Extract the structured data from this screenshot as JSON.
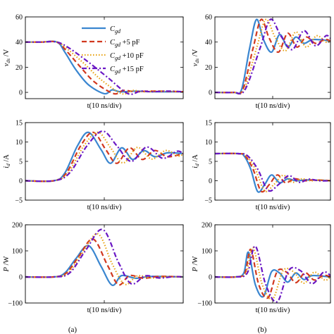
{
  "colors": {
    "blue": "#3a86d0",
    "red": "#d1381f",
    "orange": "#e8a417",
    "purple": "#6a17c4"
  },
  "legend": [
    {
      "sym": "C",
      "sub": "gd",
      "suffix": "",
      "color": "#3a86d0",
      "dash": "solid"
    },
    {
      "sym": "C",
      "sub": "gd",
      "suffix": " +5 pF",
      "color": "#d1381f",
      "dash": "dash"
    },
    {
      "sym": "C",
      "sub": "gd",
      "suffix": " +10 pF",
      "color": "#e8a417",
      "dash": "dot"
    },
    {
      "sym": "C",
      "sub": "gd",
      "suffix": " +15 pF",
      "color": "#6a17c4",
      "dash": "dashdot"
    }
  ],
  "captions": {
    "a": "(a)",
    "b": "(b)"
  },
  "chart_data": [
    {
      "id": "a1",
      "type": "line",
      "column": "a",
      "ylabel_main": "v",
      "ylabel_sub": "ds",
      "ylabel_unit": " /V",
      "xlabel": "t(10 ns/div)",
      "ylim": [
        -5,
        60
      ],
      "yticks": [
        0,
        20,
        40,
        60
      ],
      "ytick_labels": [
        "0",
        "20",
        "40",
        "60"
      ],
      "xlim": [
        0,
        10
      ],
      "grid": false,
      "series": [
        {
          "name": "Cgd",
          "x": [
            0,
            1,
            2,
            2.5,
            3.2,
            4,
            5,
            5.5,
            6,
            7,
            8,
            10
          ],
          "y": [
            40,
            40,
            40,
            32,
            18,
            6,
            -1,
            2,
            0.5,
            1,
            0.5,
            0.5
          ]
        },
        {
          "name": "Cgd +5 pF",
          "x": [
            0,
            1,
            2,
            2.6,
            3.5,
            4.4,
            5.6,
            6.2,
            7,
            8,
            10
          ],
          "y": [
            40,
            40,
            40,
            33,
            20,
            8,
            -1,
            1.5,
            0.5,
            1,
            0.5
          ]
        },
        {
          "name": "Cgd +10 pF",
          "x": [
            0,
            1,
            2,
            2.7,
            3.8,
            4.8,
            6.1,
            6.8,
            7.5,
            8.5,
            10
          ],
          "y": [
            40,
            40,
            40,
            34,
            22,
            10,
            -1,
            1.5,
            0.5,
            1,
            0.5
          ]
        },
        {
          "name": "Cgd +15 pF",
          "x": [
            0,
            1,
            2,
            2.8,
            4,
            5.2,
            6.5,
            7.3,
            8,
            9,
            10
          ],
          "y": [
            40,
            40,
            40,
            35,
            24,
            12,
            -1,
            1,
            0.5,
            1,
            0.5
          ]
        }
      ]
    },
    {
      "id": "b1",
      "type": "line",
      "column": "b",
      "ylabel_main": "v",
      "ylabel_sub": "ds",
      "ylabel_unit": " /V",
      "xlabel": "t(10 ns/div)",
      "ylim": [
        -5,
        60
      ],
      "yticks": [
        0,
        20,
        40,
        60
      ],
      "ytick_labels": [
        "0",
        "20",
        "40",
        "60"
      ],
      "xlim": [
        0,
        10
      ],
      "grid": false,
      "series": [
        {
          "name": "Cgd",
          "x": [
            0,
            1.6,
            2.3,
            3,
            3.6,
            4.2,
            4.9,
            5.6,
            6.3,
            7,
            7.7,
            8.5,
            10
          ],
          "y": [
            0,
            0,
            2,
            35,
            58,
            42,
            32,
            46,
            36,
            44,
            39,
            42,
            41
          ]
        },
        {
          "name": "Cgd +5 pF",
          "x": [
            0,
            1.6,
            2.4,
            3.3,
            4,
            4.7,
            5.5,
            6.3,
            7.1,
            7.9,
            8.7,
            9.5,
            10
          ],
          "y": [
            0,
            0,
            2,
            35,
            58,
            43,
            32,
            47,
            36,
            44,
            39,
            42,
            41
          ]
        },
        {
          "name": "Cgd +10 pF",
          "x": [
            0,
            1.6,
            2.5,
            3.6,
            4.4,
            5.2,
            6.1,
            7,
            7.9,
            8.8,
            9.6,
            10
          ],
          "y": [
            0,
            0,
            2,
            35,
            58,
            44,
            33,
            48,
            36,
            45,
            40,
            41
          ]
        },
        {
          "name": "Cgd +15 pF",
          "x": [
            0,
            1.6,
            2.6,
            3.9,
            4.8,
            5.7,
            6.7,
            7.7,
            8.7,
            9.6,
            10
          ],
          "y": [
            0,
            0,
            2,
            35,
            58,
            45,
            34,
            49,
            37,
            45,
            43
          ]
        }
      ]
    },
    {
      "id": "a2",
      "type": "line",
      "column": "a",
      "ylabel_main": "i",
      "ylabel_sub": "d",
      "ylabel_unit": " /A",
      "xlabel": "t(10 ns/div)",
      "ylim": [
        -5,
        15
      ],
      "yticks": [
        -5,
        0,
        5,
        10,
        15
      ],
      "ytick_labels": [
        "−5",
        "0",
        "5",
        "10",
        "15"
      ],
      "xlim": [
        0,
        10
      ],
      "grid": false,
      "series": [
        {
          "name": "Cgd",
          "x": [
            0,
            1.8,
            2.5,
            3.3,
            4,
            4.8,
            5.4,
            6.1,
            6.8,
            7.5,
            8.2,
            9,
            10
          ],
          "y": [
            0,
            0,
            2,
            9,
            12.5,
            8,
            4.5,
            8.5,
            5.5,
            7.8,
            6.2,
            7.2,
            7
          ]
        },
        {
          "name": "Cgd +5 pF",
          "x": [
            0,
            1.8,
            2.6,
            3.5,
            4.3,
            5.1,
            5.8,
            6.6,
            7.4,
            8.2,
            9,
            10
          ],
          "y": [
            0,
            0,
            2,
            9,
            12.5,
            8,
            4.5,
            8.5,
            5.5,
            7.8,
            6.2,
            7
          ]
        },
        {
          "name": "Cgd +10 pF",
          "x": [
            0,
            1.8,
            2.7,
            3.7,
            4.6,
            5.4,
            6.2,
            7.1,
            8,
            8.9,
            9.7,
            10
          ],
          "y": [
            0,
            0,
            2,
            9,
            12.5,
            8.5,
            4.6,
            8.6,
            5.6,
            7.8,
            6.4,
            7
          ]
        },
        {
          "name": "Cgd +15 pF",
          "x": [
            0,
            1.8,
            2.8,
            3.9,
            4.9,
            5.8,
            6.7,
            7.7,
            8.7,
            9.6,
            10
          ],
          "y": [
            0,
            0,
            2,
            9,
            12.8,
            9,
            5,
            8.7,
            5.8,
            7.6,
            7
          ]
        }
      ]
    },
    {
      "id": "b2",
      "type": "line",
      "column": "b",
      "ylabel_main": "i",
      "ylabel_sub": "d",
      "ylabel_unit": " /A",
      "xlabel": "t(10 ns/div)",
      "ylim": [
        -5,
        15
      ],
      "yticks": [
        -5,
        0,
        5,
        10,
        15
      ],
      "ytick_labels": [
        "−5",
        "0",
        "5",
        "10",
        "15"
      ],
      "xlim": [
        0,
        10
      ],
      "grid": false,
      "series": [
        {
          "name": "Cgd",
          "x": [
            0,
            2,
            2.5,
            3.1,
            3.7,
            4.3,
            4.9,
            5.6,
            6.3,
            7,
            8,
            10
          ],
          "y": [
            7,
            7,
            6.5,
            3,
            -2.8,
            -1,
            1.5,
            -0.5,
            0.5,
            0,
            0.2,
            0
          ]
        },
        {
          "name": "Cgd +5 pF",
          "x": [
            0,
            2,
            2.6,
            3.3,
            4,
            4.7,
            5.4,
            6.1,
            6.9,
            7.7,
            8.5,
            10
          ],
          "y": [
            7,
            7,
            6.5,
            3,
            -2.7,
            -1,
            1.5,
            -0.5,
            0.5,
            0,
            0.2,
            0
          ]
        },
        {
          "name": "Cgd +10 pF",
          "x": [
            0,
            2,
            2.7,
            3.5,
            4.3,
            5.1,
            5.9,
            6.7,
            7.5,
            8.3,
            9.1,
            10
          ],
          "y": [
            7,
            7,
            6.5,
            3,
            -2.6,
            -1,
            1.4,
            -0.4,
            0.5,
            0,
            0.2,
            0
          ]
        },
        {
          "name": "Cgd +15 pF",
          "x": [
            0,
            2,
            2.8,
            3.7,
            4.6,
            5.5,
            6.4,
            7.3,
            8.1,
            9,
            10
          ],
          "y": [
            7,
            7,
            6.5,
            3,
            -2.5,
            -1,
            1.3,
            -0.4,
            0.4,
            0,
            0
          ]
        }
      ]
    },
    {
      "id": "a3",
      "type": "line",
      "column": "a",
      "ylabel_main": "P",
      "ylabel_sub": "",
      "ylabel_unit": " /W",
      "xlabel": "t(10 ns/div)",
      "ylim": [
        -100,
        200
      ],
      "yticks": [
        -100,
        0,
        100,
        200
      ],
      "ytick_labels": [
        "−100",
        "0",
        "100",
        "200"
      ],
      "xlim": [
        0,
        10
      ],
      "grid": false,
      "series": [
        {
          "name": "Cgd",
          "x": [
            0,
            1.8,
            2.5,
            3.2,
            4,
            4.8,
            5.5,
            6.1,
            7,
            8,
            10
          ],
          "y": [
            0,
            0,
            15,
            70,
            120,
            40,
            -32,
            5,
            -5,
            2,
            0
          ]
        },
        {
          "name": "Cgd +5 pF",
          "x": [
            0,
            1.8,
            2.6,
            3.4,
            4.3,
            5.2,
            5.9,
            6.6,
            7.5,
            8.5,
            10
          ],
          "y": [
            0,
            0,
            15,
            80,
            145,
            45,
            -30,
            5,
            -5,
            2,
            0
          ]
        },
        {
          "name": "Cgd +10 pF",
          "x": [
            0,
            1.8,
            2.7,
            3.6,
            4.6,
            5.5,
            6.3,
            7.1,
            8,
            9,
            10
          ],
          "y": [
            0,
            0,
            15,
            90,
            165,
            50,
            -28,
            4,
            -4,
            1,
            0
          ]
        },
        {
          "name": "Cgd +15 pF",
          "x": [
            0,
            1.8,
            2.8,
            3.8,
            4.9,
            5.9,
            6.7,
            7.6,
            8.5,
            9.4,
            10
          ],
          "y": [
            0,
            0,
            15,
            100,
            182,
            55,
            -26,
            4,
            -4,
            1,
            0
          ]
        }
      ]
    },
    {
      "id": "b3",
      "type": "line",
      "column": "b",
      "ylabel_main": "P",
      "ylabel_sub": "",
      "ylabel_unit": " /W",
      "xlabel": "t(10 ns/div)",
      "ylim": [
        -100,
        200
      ],
      "yticks": [
        -100,
        0,
        100,
        200
      ],
      "ytick_labels": [
        "−100",
        "0",
        "100",
        "200"
      ],
      "xlim": [
        0,
        10
      ],
      "grid": false,
      "series": [
        {
          "name": "Cgd",
          "x": [
            0,
            1.8,
            2.5,
            2.9,
            3.5,
            4.2,
            4.9,
            5.6,
            6.3,
            7,
            7.7,
            8.4,
            10
          ],
          "y": [
            0,
            0,
            15,
            95,
            -30,
            -75,
            20,
            15,
            -20,
            15,
            -10,
            5,
            0
          ]
        },
        {
          "name": "Cgd +5 pF",
          "x": [
            0,
            1.8,
            2.6,
            3.1,
            3.8,
            4.6,
            5.4,
            6.2,
            7,
            7.8,
            8.6,
            9.4,
            10
          ],
          "y": [
            0,
            0,
            15,
            105,
            -30,
            -80,
            22,
            18,
            -22,
            16,
            -12,
            6,
            0
          ]
        },
        {
          "name": "Cgd +10 pF",
          "x": [
            0,
            1.8,
            2.7,
            3.3,
            4.1,
            5,
            5.9,
            6.8,
            7.7,
            8.6,
            9.5,
            10
          ],
          "y": [
            0,
            0,
            15,
            112,
            -30,
            -85,
            24,
            20,
            -24,
            18,
            -12,
            0
          ]
        },
        {
          "name": "Cgd +15 pF",
          "x": [
            0,
            1.8,
            2.8,
            3.5,
            4.4,
            5.4,
            6.4,
            7.4,
            8.4,
            9.4,
            10
          ],
          "y": [
            0,
            0,
            15,
            118,
            -30,
            -95,
            26,
            24,
            -26,
            18,
            5
          ]
        }
      ]
    }
  ]
}
